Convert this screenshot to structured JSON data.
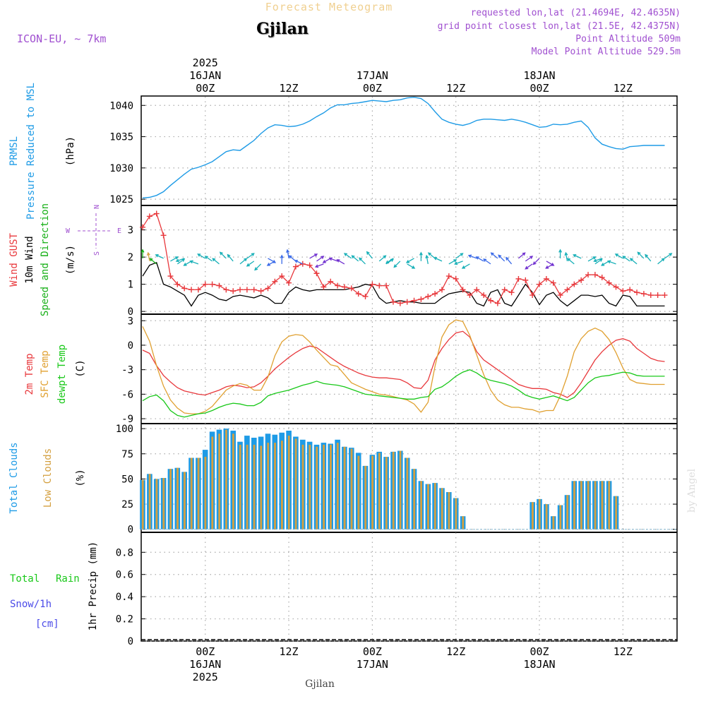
{
  "header": {
    "title": "Forecast Meteogram",
    "location": "Gjilan",
    "model": "ICON-EU, ~ 7km",
    "requested": "requested lon,lat (21.4694E, 42.4635N)",
    "gridpoint": "grid point closest lon,lat (21.5E, 42.4375N)",
    "point_alt": "Point Altitude 509m",
    "model_alt": "Model Point Altitude 529.5m",
    "footer_location": "Gjilan",
    "credit": "by Angel"
  },
  "colors": {
    "pressure": "#1e9be6",
    "gust": "#e8383c",
    "wind": "#000000",
    "wind_dir_label": "#18b018",
    "t2m": "#e8383c",
    "tsfc": "#e0a030",
    "dewpt": "#18c818",
    "total_clouds": "#1e9be6",
    "low_clouds": "#d4a040",
    "rain": "#18c818",
    "snow": "#4a4ae8",
    "meta": "#a050d0"
  },
  "top_axis": [
    {
      "t": 9,
      "lines": [
        "2025",
        "16JAN",
        "00Z"
      ]
    },
    {
      "t": 21,
      "lines": [
        "12Z"
      ]
    },
    {
      "t": 33,
      "lines": [
        "17JAN",
        "00Z"
      ]
    },
    {
      "t": 45,
      "lines": [
        "12Z"
      ]
    },
    {
      "t": 57,
      "lines": [
        "18JAN",
        "00Z"
      ]
    },
    {
      "t": 69,
      "lines": [
        "12Z"
      ]
    }
  ],
  "bottom_axis": [
    {
      "t": 9,
      "lines": [
        "00Z",
        "16JAN",
        "2025"
      ]
    },
    {
      "t": 21,
      "lines": [
        "12Z"
      ]
    },
    {
      "t": 33,
      "lines": [
        "00Z",
        "17JAN"
      ]
    },
    {
      "t": 45,
      "lines": [
        "12Z"
      ]
    },
    {
      "t": 57,
      "lines": [
        "00Z",
        "18JAN"
      ]
    },
    {
      "t": 69,
      "lines": [
        "12Z"
      ]
    }
  ],
  "panels": {
    "pressure": {
      "labels": [
        "PRMSL",
        "Pressure Reduced to MSL"
      ],
      "unit": "(hPa)",
      "ticks": [
        "1025",
        "1030",
        "1035",
        "1040"
      ]
    },
    "wind": {
      "labels": [
        "Wind GUST",
        "10m Wind",
        "Speed and Direction"
      ],
      "unit": "(m/s)",
      "ticks": [
        "0",
        "1",
        "2",
        "3"
      ],
      "compass": {
        "n": "N",
        "s": "S",
        "w": "W",
        "e": "E"
      }
    },
    "temp": {
      "labels": [
        "2m Temp",
        "SFC Temp",
        "dewpt Temp"
      ],
      "unit": "(C)",
      "ticks": [
        "-9",
        "-6",
        "-3",
        "0",
        "3"
      ]
    },
    "clouds": {
      "labels": [
        "Total Clouds",
        "Low Clouds"
      ],
      "unit": "(%)",
      "ticks": [
        "0",
        "25",
        "50",
        "75",
        "100"
      ]
    },
    "precip": {
      "legend": [
        "Total",
        "Rain",
        "Snow/1h",
        "[cm]"
      ],
      "axis_label": "1hr Precip (mm)",
      "ticks": [
        "0",
        "0.2",
        "0.4",
        "0.6",
        "0.8"
      ]
    }
  },
  "chart_data": [
    {
      "type": "line",
      "name": "PRMSL",
      "unit": "hPa",
      "x_unit": "hours from 15 JAN 2025 15Z",
      "ylim": [
        1024,
        1041.5
      ],
      "x": [
        0,
        1,
        2,
        3,
        4,
        5,
        6,
        7,
        8,
        9,
        10,
        11,
        12,
        13,
        14,
        15,
        16,
        17,
        18,
        19,
        20,
        21,
        22,
        23,
        24,
        25,
        26,
        27,
        28,
        29,
        30,
        31,
        32,
        33,
        34,
        35,
        36,
        37,
        38,
        39,
        40,
        41,
        42,
        43,
        44,
        45,
        46,
        47,
        48,
        49,
        50,
        51,
        52,
        53,
        54,
        55,
        56,
        57,
        58,
        59,
        60,
        61,
        62,
        63,
        64,
        65,
        66,
        67,
        68,
        69,
        70,
        71,
        72,
        73,
        74,
        75
      ],
      "values": [
        1025.2,
        1025.3,
        1025.6,
        1026.2,
        1027.2,
        1028.1,
        1029,
        1029.8,
        1030.1,
        1030.5,
        1031,
        1031.8,
        1032.6,
        1032.9,
        1032.8,
        1033.6,
        1034.4,
        1035.5,
        1036.4,
        1036.9,
        1036.8,
        1036.6,
        1036.7,
        1037,
        1037.5,
        1038.2,
        1038.8,
        1039.6,
        1040.1,
        1040.1,
        1040.3,
        1040.4,
        1040.6,
        1040.8,
        1040.7,
        1040.6,
        1040.8,
        1040.9,
        1041.2,
        1041.3,
        1041.1,
        1040.3,
        1039,
        1037.8,
        1037.3,
        1037,
        1036.8,
        1037.1,
        1037.6,
        1037.8,
        1037.8,
        1037.7,
        1037.6,
        1037.8,
        1037.6,
        1037.3,
        1036.9,
        1036.5,
        1036.6,
        1037,
        1036.9,
        1037,
        1037.3,
        1037.5,
        1036.5,
        1034.8,
        1033.8,
        1033.4,
        1033.1,
        1033,
        1033.4,
        1033.5,
        1033.6,
        1033.6,
        1033.6,
        1033.6
      ]
    },
    {
      "type": "line",
      "name": "Wind GUST / 10m Wind",
      "unit": "m/s",
      "x_unit": "hours from 15 JAN 2025 15Z",
      "ylim": [
        -0.1,
        3.9
      ],
      "x": [
        0,
        1,
        2,
        3,
        4,
        5,
        6,
        7,
        8,
        9,
        10,
        11,
        12,
        13,
        14,
        15,
        16,
        17,
        18,
        19,
        20,
        21,
        22,
        23,
        24,
        25,
        26,
        27,
        28,
        29,
        30,
        31,
        32,
        33,
        34,
        35,
        36,
        37,
        38,
        39,
        40,
        41,
        42,
        43,
        44,
        45,
        46,
        47,
        48,
        49,
        50,
        51,
        52,
        53,
        54,
        55,
        56,
        57,
        58,
        59,
        60,
        61,
        62,
        63,
        64,
        65,
        66,
        67,
        68,
        69,
        70,
        71,
        72,
        73,
        74,
        75
      ],
      "series": [
        {
          "name": "Wind GUST",
          "values": [
            3.1,
            3.5,
            3.6,
            2.8,
            1.3,
            1,
            0.85,
            0.8,
            0.8,
            1,
            1,
            0.95,
            0.8,
            0.75,
            0.8,
            0.8,
            0.8,
            0.75,
            0.85,
            1.1,
            1.3,
            1.05,
            1.65,
            1.75,
            1.7,
            1.4,
            0.9,
            1.1,
            0.95,
            0.9,
            0.85,
            0.65,
            0.55,
            1,
            0.95,
            0.95,
            0.35,
            0.3,
            0.35,
            0.4,
            0.45,
            0.55,
            0.65,
            0.8,
            1.3,
            1.2,
            0.8,
            0.6,
            0.8,
            0.6,
            0.4,
            0.3,
            0.8,
            0.7,
            1.2,
            1.15,
            0.6,
            1,
            1.2,
            1.05,
            0.6,
            0.8,
            1,
            1.15,
            1.35,
            1.35,
            1.25,
            1.05,
            0.9,
            0.75,
            0.8,
            0.7,
            0.65,
            0.6,
            0.6,
            0.6
          ]
        },
        {
          "name": "10m Wind",
          "values": [
            1.3,
            1.7,
            1.8,
            1,
            0.9,
            0.75,
            0.6,
            0.2,
            0.6,
            0.7,
            0.6,
            0.45,
            0.4,
            0.55,
            0.6,
            0.55,
            0.5,
            0.6,
            0.5,
            0.3,
            0.3,
            0.7,
            0.9,
            0.8,
            0.75,
            0.8,
            0.8,
            0.8,
            0.8,
            0.8,
            0.85,
            0.9,
            1,
            0.95,
            0.5,
            0.3,
            0.35,
            0.4,
            0.35,
            0.35,
            0.3,
            0.3,
            0.3,
            0.5,
            0.65,
            0.7,
            0.75,
            0.7,
            0.3,
            0.2,
            0.7,
            0.8,
            0.3,
            0.2,
            0.6,
            1,
            0.7,
            0.25,
            0.6,
            0.7,
            0.4,
            0.2,
            0.4,
            0.6,
            0.6,
            0.55,
            0.6,
            0.3,
            0.2,
            0.6,
            0.55,
            0.2,
            0.2,
            0.2,
            0.2,
            0.2
          ]
        }
      ]
    },
    {
      "type": "line",
      "name": "Temperatures",
      "unit": "C",
      "x_unit": "hours from 15 JAN 2025 15Z",
      "ylim": [
        -9.6,
        3.8
      ],
      "x": [
        0,
        1,
        2,
        3,
        4,
        5,
        6,
        7,
        8,
        9,
        10,
        11,
        12,
        13,
        14,
        15,
        16,
        17,
        18,
        19,
        20,
        21,
        22,
        23,
        24,
        25,
        26,
        27,
        28,
        29,
        30,
        31,
        32,
        33,
        34,
        35,
        36,
        37,
        38,
        39,
        40,
        41,
        42,
        43,
        44,
        45,
        46,
        47,
        48,
        49,
        50,
        51,
        52,
        53,
        54,
        55,
        56,
        57,
        58,
        59,
        60,
        61,
        62,
        63,
        64,
        65,
        66,
        67,
        68,
        69,
        70,
        71,
        72,
        73,
        74,
        75
      ],
      "series": [
        {
          "name": "2m Temp",
          "values": [
            -0.6,
            -1,
            -2.5,
            -3.7,
            -4.5,
            -5.2,
            -5.6,
            -5.8,
            -6,
            -6.1,
            -5.8,
            -5.5,
            -5.1,
            -4.9,
            -5,
            -5.2,
            -5.1,
            -4.6,
            -3.8,
            -2.9,
            -2.2,
            -1.5,
            -0.9,
            -0.4,
            -0.1,
            -0.3,
            -0.9,
            -1.5,
            -2.1,
            -2.6,
            -3,
            -3.4,
            -3.7,
            -3.9,
            -4,
            -4,
            -4.1,
            -4.2,
            -4.6,
            -5.2,
            -5.3,
            -4.3,
            -1.8,
            -0.4,
            0.7,
            1.5,
            1.7,
            1,
            -0.8,
            -1.8,
            -2.4,
            -3,
            -3.6,
            -4.2,
            -4.8,
            -5.1,
            -5.3,
            -5.3,
            -5.4,
            -5.8,
            -6,
            -6.4,
            -5.8,
            -4.6,
            -3.2,
            -1.8,
            -0.8,
            0,
            0.6,
            0.8,
            0.5,
            -0.4,
            -1,
            -1.6,
            -1.9,
            -2
          ]
        },
        {
          "name": "SFC Temp",
          "values": [
            2.3,
            0.5,
            -2.5,
            -5,
            -6.7,
            -7.7,
            -8.3,
            -8.4,
            -8.4,
            -8.1,
            -7.5,
            -6.5,
            -5.5,
            -5,
            -4.7,
            -4.9,
            -5.5,
            -5.5,
            -3.9,
            -1.3,
            0.4,
            1.1,
            1.3,
            1.2,
            0.4,
            -0.6,
            -1.5,
            -2.4,
            -2.6,
            -3.6,
            -4.6,
            -5,
            -5.4,
            -5.7,
            -6,
            -6.1,
            -6.3,
            -6.5,
            -6.7,
            -7.2,
            -8.2,
            -7,
            -2.6,
            1,
            2.5,
            3.1,
            2.9,
            1.2,
            -1.2,
            -3.6,
            -5.5,
            -6.7,
            -7.3,
            -7.6,
            -7.6,
            -7.8,
            -7.9,
            -8.2,
            -8,
            -8,
            -6.2,
            -3.8,
            -0.8,
            0.8,
            1.7,
            2.1,
            1.7,
            0.7,
            -0.9,
            -2.8,
            -4.2,
            -4.6,
            -4.7,
            -4.8,
            -4.8,
            -4.8
          ]
        },
        {
          "name": "dewpt Temp",
          "values": [
            -6.8,
            -6.3,
            -6.1,
            -6.8,
            -8,
            -8.6,
            -8.8,
            -8.6,
            -8.4,
            -8.3,
            -8,
            -7.6,
            -7.3,
            -7.1,
            -7.2,
            -7.4,
            -7.4,
            -7,
            -6.2,
            -5.9,
            -5.7,
            -5.5,
            -5.2,
            -4.9,
            -4.7,
            -4.4,
            -4.7,
            -4.8,
            -4.9,
            -5.1,
            -5.4,
            -5.7,
            -6,
            -6.1,
            -6.2,
            -6.3,
            -6.4,
            -6.5,
            -6.6,
            -6.6,
            -6.4,
            -6.3,
            -5.4,
            -5.1,
            -4.5,
            -3.8,
            -3.3,
            -3,
            -3.4,
            -4,
            -4.3,
            -4.5,
            -4.7,
            -5,
            -5.5,
            -6.1,
            -6.4,
            -6.6,
            -6.4,
            -6.2,
            -6.5,
            -6.8,
            -6.4,
            -5.5,
            -4.6,
            -4,
            -3.8,
            -3.7,
            -3.5,
            -3.3,
            -3.4,
            -3.7,
            -3.8,
            -3.8,
            -3.8,
            -3.8
          ]
        }
      ]
    },
    {
      "type": "bar",
      "name": "Clouds",
      "unit": "%",
      "x_unit": "hours from 15 JAN 2025 15Z",
      "ylim": [
        -3,
        105
      ],
      "x": [
        0,
        1,
        2,
        3,
        4,
        5,
        6,
        7,
        8,
        9,
        10,
        11,
        12,
        13,
        14,
        15,
        16,
        17,
        18,
        19,
        20,
        21,
        22,
        23,
        24,
        25,
        26,
        27,
        28,
        29,
        30,
        31,
        32,
        33,
        34,
        35,
        36,
        37,
        38,
        39,
        40,
        41,
        42,
        43,
        44,
        45,
        46,
        47,
        48,
        49,
        50,
        51,
        52,
        53,
        54,
        55,
        56,
        57,
        58,
        59,
        60,
        61,
        62,
        63,
        64,
        65,
        66,
        67,
        68,
        69,
        70,
        71,
        72,
        73,
        74,
        75
      ],
      "series": [
        {
          "name": "Total Clouds",
          "values": [
            49,
            55,
            50,
            51,
            60,
            61,
            57,
            71,
            71,
            79,
            97,
            99,
            100,
            98,
            87,
            93,
            91,
            92,
            95,
            94,
            96,
            98,
            92,
            89,
            87,
            84,
            86,
            85,
            89,
            82,
            81,
            76,
            63,
            74,
            77,
            72,
            77,
            78,
            71,
            60,
            48,
            45,
            46,
            41,
            37,
            31,
            13,
            0,
            0,
            0,
            0,
            0,
            0,
            0,
            0,
            0,
            27,
            30,
            25,
            13,
            24,
            34,
            48,
            48,
            48,
            48,
            48,
            48,
            33,
            0,
            0,
            0,
            0,
            0,
            0,
            0
          ]
        },
        {
          "name": "Low Clouds",
          "values": [
            49,
            55,
            50,
            51,
            60,
            61,
            57,
            71,
            71,
            72,
            92,
            95,
            99,
            95,
            84,
            84,
            84,
            83,
            86,
            86,
            88,
            93,
            90,
            84,
            84,
            82,
            84,
            84,
            86,
            82,
            80,
            73,
            63,
            73,
            76,
            72,
            77,
            78,
            71,
            60,
            48,
            45,
            46,
            41,
            37,
            31,
            13,
            0,
            0,
            0,
            0,
            0,
            0,
            0,
            0,
            0,
            27,
            30,
            25,
            13,
            24,
            34,
            48,
            48,
            48,
            48,
            48,
            48,
            33,
            0,
            0,
            0,
            0,
            0,
            0,
            0
          ]
        }
      ]
    },
    {
      "type": "bar",
      "name": "1hr Precip",
      "unit": "mm",
      "ylim": [
        0,
        0.98
      ],
      "series": [
        {
          "name": "Total",
          "values": []
        },
        {
          "name": "Rain",
          "values": []
        }
      ]
    }
  ]
}
